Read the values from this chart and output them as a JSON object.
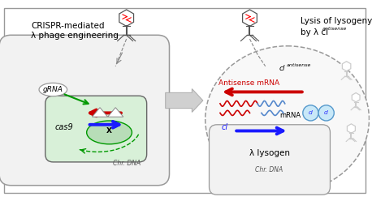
{
  "bg_color": "#ffffff",
  "left_title1": "CRISPR-mediated",
  "left_title2": "λ phage engineering",
  "grna_label": "gRNA",
  "cas9_label": "cas9",
  "left_chr_dna": "Chr. DNA",
  "right_title1": "Lysis of lysogeny",
  "right_title2": "by λ cl",
  "right_title_sup": "antisense",
  "ci_antisense_main": "cl",
  "ci_antisense_sup": "antisense",
  "antisense_mrna_text": "Antisense mRNA",
  "mrna_label": "mRNA",
  "cl_label": "cl",
  "lysogen_label": "λ lysogen",
  "right_chr_dna": "Chr. DNA",
  "red": "#cc0000",
  "blue": "#1a1aff",
  "green": "#009900",
  "gray": "#888888",
  "dgray": "#555555",
  "lgray": "#cccccc",
  "cell_fill": "#f2f2f2",
  "cell_edge": "#999999",
  "nucleus_fill": "#d8f0d8",
  "nucleus_edge": "#666666",
  "ci_fill": "#c8e8f8",
  "ci_edge": "#5599cc"
}
